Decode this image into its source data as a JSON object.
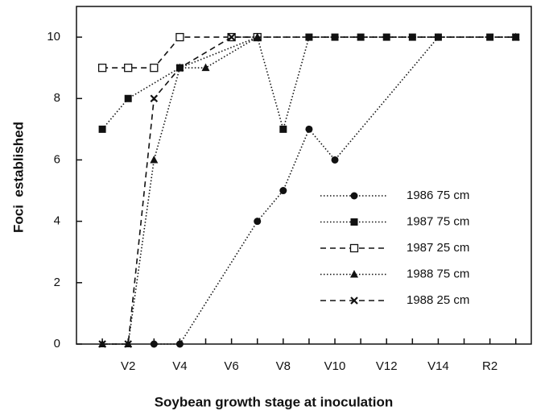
{
  "chart_data": {
    "type": "line",
    "x_label": "Soybean growth stage at inoculation",
    "y_label": "Foci  established",
    "xlim": [
      0,
      17.6
    ],
    "ylim": [
      0,
      11
    ],
    "xticks": [
      {
        "value": 2,
        "label": "V2"
      },
      {
        "value": 4,
        "label": "V4"
      },
      {
        "value": 6,
        "label": "V6"
      },
      {
        "value": 8,
        "label": "V8"
      },
      {
        "value": 10,
        "label": "V10"
      },
      {
        "value": 12,
        "label": "V12"
      },
      {
        "value": 14,
        "label": "V14"
      },
      {
        "value": 16,
        "label": "R2"
      }
    ],
    "xminor_ticks": [
      1,
      3,
      5,
      7,
      9,
      11,
      13,
      15,
      17
    ],
    "yticks": [
      0,
      2,
      4,
      6,
      8,
      10
    ],
    "series": [
      {
        "name": "1986 75 cm",
        "color": "#111111",
        "dash": "dotted",
        "marker": "circle-filled",
        "x": [
          3,
          4,
          7,
          8,
          9,
          10,
          14
        ],
        "values": [
          0,
          0,
          4,
          5,
          7,
          6,
          10
        ]
      },
      {
        "name": "1987 75 cm",
        "color": "#111111",
        "dash": "dotted",
        "marker": "square-filled",
        "x": [
          1,
          2,
          4,
          7,
          8,
          9,
          10,
          11,
          12,
          13,
          14,
          16,
          17
        ],
        "values": [
          7,
          8,
          9,
          10,
          7,
          10,
          10,
          10,
          10,
          10,
          10,
          10,
          10
        ]
      },
      {
        "name": "1987 25 cm",
        "color": "#111111",
        "dash": "dashed",
        "marker": "square-open",
        "x": [
          1,
          2,
          3,
          4,
          6,
          7
        ],
        "values": [
          9,
          9,
          9,
          10,
          10,
          10
        ]
      },
      {
        "name": "1988 75 cm",
        "color": "#111111",
        "dash": "dotted",
        "marker": "triangle-filled",
        "x": [
          1,
          2,
          3,
          4,
          5,
          7,
          17
        ],
        "values": [
          0,
          0,
          6,
          9,
          9,
          10,
          10
        ]
      },
      {
        "name": "1988 25 cm",
        "color": "#111111",
        "dash": "dashed",
        "marker": "cross",
        "x": [
          1,
          2,
          3,
          4,
          6,
          17
        ],
        "values": [
          0,
          0,
          8,
          9,
          10,
          10
        ]
      }
    ]
  }
}
